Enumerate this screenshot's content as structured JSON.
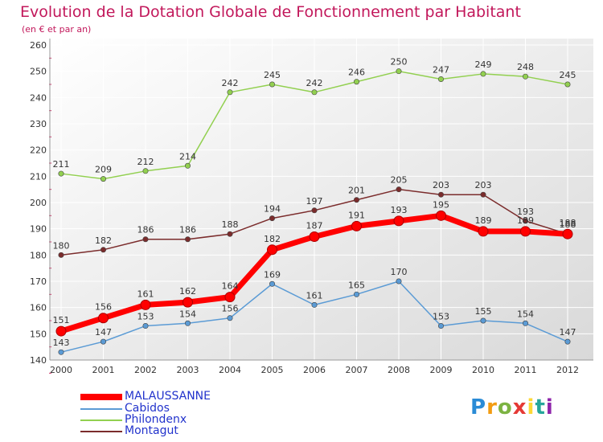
{
  "title": "Evolution de la Dotation Globale de Fonctionnement par Habitant",
  "subtitle": "(en € et par an)",
  "logo_text": "Proxiti",
  "chart_data": {
    "type": "line",
    "x": [
      "2000",
      "2001",
      "2002",
      "2003",
      "2004",
      "2005",
      "2006",
      "2007",
      "2008",
      "2009",
      "2010",
      "2011",
      "2012"
    ],
    "y_ticks": [
      140,
      150,
      160,
      170,
      180,
      190,
      200,
      210,
      220,
      230,
      240,
      250,
      260
    ],
    "ylim": [
      140,
      260
    ],
    "grid": true,
    "legend_position": "bottom-left",
    "series": [
      {
        "name": "MALAUSSANNE",
        "color": "#ff0000",
        "emphasis": true,
        "values": [
          151,
          156,
          161,
          162,
          164,
          182,
          187,
          191,
          193,
          195,
          189,
          189,
          188
        ]
      },
      {
        "name": "Cabidos",
        "color": "#5b9bd5",
        "values": [
          143,
          147,
          153,
          154,
          156,
          169,
          161,
          165,
          170,
          153,
          155,
          154,
          147
        ]
      },
      {
        "name": "Philondenx",
        "color": "#92d050",
        "values": [
          211,
          209,
          212,
          214,
          242,
          245,
          242,
          246,
          250,
          247,
          249,
          248,
          245
        ]
      },
      {
        "name": "Montagut",
        "color": "#7b2c2c",
        "values": [
          180,
          182,
          186,
          186,
          188,
          194,
          197,
          201,
          205,
          203,
          203,
          193,
          188
        ]
      }
    ]
  }
}
